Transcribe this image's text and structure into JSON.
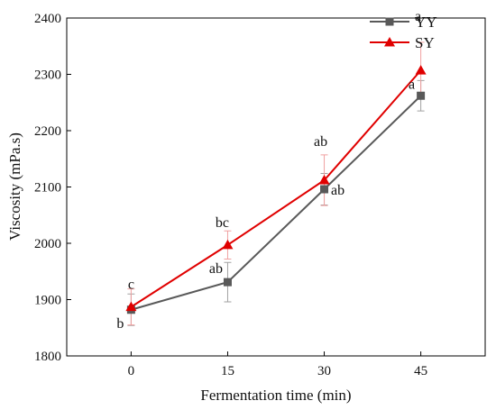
{
  "chart_data": {
    "type": "line",
    "x": [
      0,
      15,
      30,
      45
    ],
    "xlabel": "Fermentation time (min)",
    "ylabel": "Viscosity (mPa.s)",
    "xlim": [
      -10,
      55
    ],
    "ylim": [
      1800,
      2400
    ],
    "xticks": [
      "0",
      "15",
      "30",
      "45"
    ],
    "yticks": [
      "1800",
      "1900",
      "2000",
      "2100",
      "2200",
      "2300",
      "2400"
    ],
    "grid": false,
    "legend_position": "top-right",
    "series": [
      {
        "name": "YY",
        "color": "#595959",
        "marker": "square",
        "values": [
          1882,
          1931,
          2096,
          2262
        ],
        "errors": [
          28,
          35,
          28,
          27
        ],
        "labels": [
          "b",
          "ab",
          "ab",
          "a"
        ]
      },
      {
        "name": "SY",
        "color": "#e00000",
        "marker": "triangle",
        "values": [
          1887,
          1997,
          2112,
          2307
        ],
        "errors": [
          32,
          25,
          45,
          50
        ],
        "labels": [
          "c",
          "bc",
          "ab",
          "a"
        ]
      }
    ]
  }
}
